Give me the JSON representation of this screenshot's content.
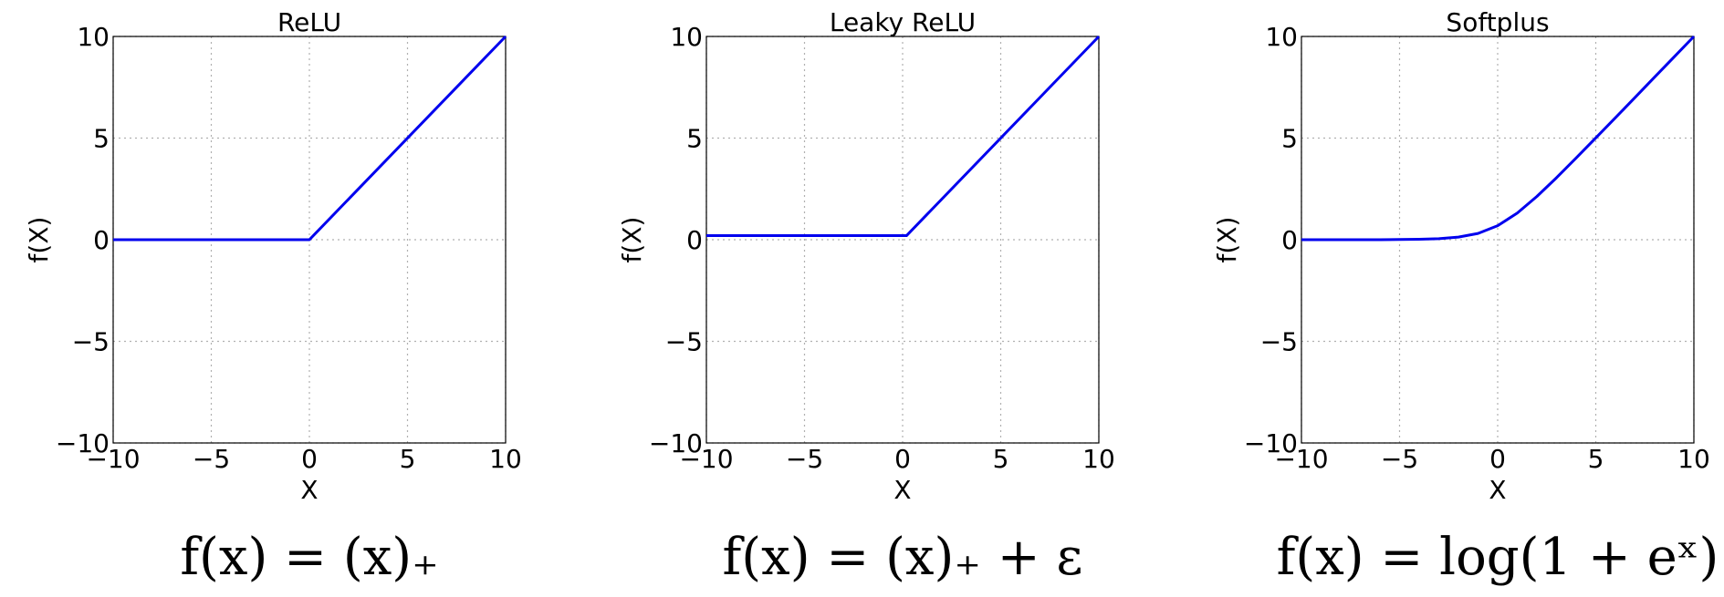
{
  "chart_data": [
    {
      "type": "line",
      "title": "ReLU",
      "xlabel": "X",
      "ylabel": "f(X)",
      "xlim": [
        -10,
        10
      ],
      "ylim": [
        -10,
        10
      ],
      "xticks": [
        "−10",
        "−5",
        "0",
        "5",
        "10"
      ],
      "yticks": [
        "10",
        "5",
        "0",
        "−5",
        "−10"
      ],
      "grid": true,
      "color": "#0000ee",
      "formula": "f(x) = (x)₊",
      "series": [
        {
          "x": [
            -10,
            0,
            10
          ],
          "y": [
            0,
            0,
            10
          ]
        }
      ]
    },
    {
      "type": "line",
      "title": "Leaky ReLU",
      "xlabel": "X",
      "ylabel": "f(X)",
      "xlim": [
        -10,
        10
      ],
      "ylim": [
        -10,
        10
      ],
      "xticks": [
        "−10",
        "−5",
        "0",
        "5",
        "10"
      ],
      "yticks": [
        "10",
        "5",
        "0",
        "−5",
        "−10"
      ],
      "grid": true,
      "color": "#0000ee",
      "formula": "f(x) = (x)₊ + ε",
      "series": [
        {
          "x": [
            -10,
            0.2,
            10
          ],
          "y": [
            0.2,
            0.2,
            10
          ]
        }
      ]
    },
    {
      "type": "line",
      "title": "Softplus",
      "xlabel": "X",
      "ylabel": "f(X)",
      "xlim": [
        -10,
        10
      ],
      "ylim": [
        -10,
        10
      ],
      "xticks": [
        "−10",
        "−5",
        "0",
        "5",
        "10"
      ],
      "yticks": [
        "10",
        "5",
        "0",
        "−5",
        "−10"
      ],
      "grid": true,
      "color": "#0000ee",
      "formula": "f(x) = log(1 + eˣ)",
      "series": [
        {
          "x": [
            -10,
            -8,
            -6,
            -5,
            -4,
            -3,
            -2,
            -1,
            0,
            1,
            2,
            3,
            4,
            5,
            6,
            7,
            8,
            9,
            10
          ],
          "y": [
            0,
            0,
            0,
            0.01,
            0.02,
            0.05,
            0.13,
            0.31,
            0.69,
            1.31,
            2.13,
            3.05,
            4.02,
            5.01,
            6,
            7,
            8,
            9,
            10
          ]
        }
      ]
    }
  ]
}
